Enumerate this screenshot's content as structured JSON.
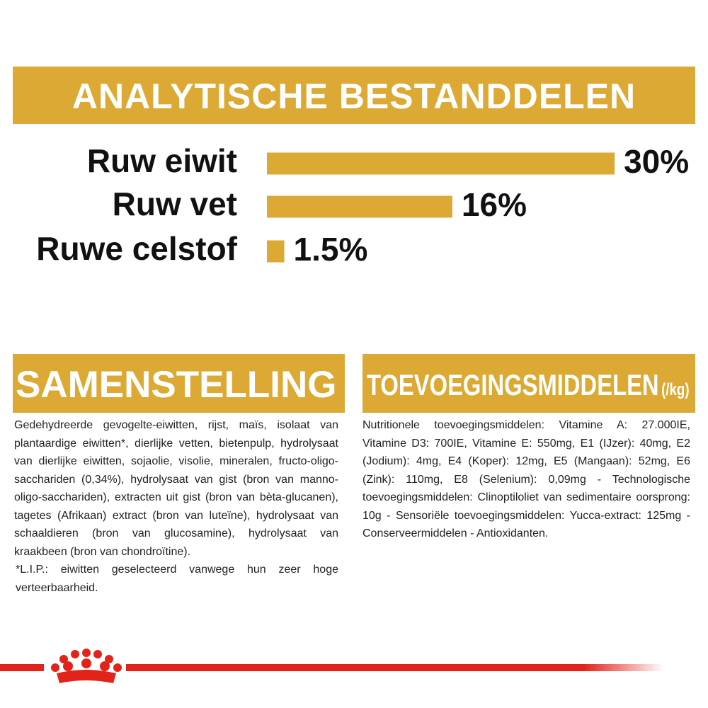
{
  "header": {
    "title": "ANALYTISCHE BESTANDDELEN"
  },
  "chart_data": {
    "type": "bar",
    "orientation": "horizontal",
    "color": "#dcaa34",
    "categories": [
      "Ruw eiwit",
      "Ruw vet",
      "Ruwe celstof"
    ],
    "values": [
      30,
      16,
      1.5
    ],
    "value_labels": [
      "30%",
      "16%",
      "1.5%"
    ]
  },
  "composition": {
    "title": "SAMENSTELLING",
    "paragraphs": [
      "Gedehydreerde gevogelte-eiwitten, rijst, maïs, isolaat van plantaardige eiwitten*, dierlijke vetten, bietenpulp, hydrolysaat van dierlijke eiwitten, sojaolie, visolie, mineralen, fructo-oligo-sacchariden (0,34%), hydrolysaat van gist (bron van manno-oligo-sacchariden), extracten uit gist (bron van bèta-glucanen), tagetes (Afrikaan) extract (bron van luteïne), hydrolysaat van schaaldieren (bron van glucosamine), hydrolysaat van kraakbeen (bron van chondroïtine).",
      "*L.I.P.: eiwitten geselecteerd vanwege hun zeer hoge verteerbaarheid."
    ]
  },
  "additives": {
    "title": "TOEVOEGINGSMIDDELEN",
    "unit": "(/kg)",
    "text": "Nutritionele toevoegingsmiddelen: Vitamine A: 27.000IE, Vitamine D3: 700IE, Vitamine E: 550mg, E1 (IJzer): 40mg, E2 (Jodium): 4mg, E4 (Koper): 12mg, E5 (Mangaan): 52mg, E6 (Zink): 110mg, E8 (Selenium): 0,09mg - Technologische toevoegingsmiddelen: Clinoptiloliet van sedimentaire oorsprong: 10g - Sensoriële toevoegingsmiddelen: Yucca-extract: 125mg - Conserveermiddelen - Antioxidanten."
  }
}
